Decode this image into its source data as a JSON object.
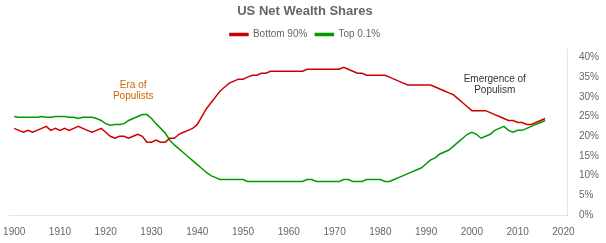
{
  "chart_data": {
    "type": "line",
    "title": "US Net Wealth Shares",
    "x": [
      1900,
      1901,
      1902,
      1903,
      1904,
      1905,
      1906,
      1907,
      1908,
      1909,
      1910,
      1911,
      1912,
      1913,
      1914,
      1915,
      1916,
      1917,
      1918,
      1919,
      1920,
      1921,
      1922,
      1923,
      1924,
      1925,
      1926,
      1927,
      1928,
      1929,
      1930,
      1931,
      1932,
      1933,
      1934,
      1935,
      1936,
      1937,
      1938,
      1939,
      1940,
      1941,
      1942,
      1943,
      1944,
      1945,
      1946,
      1947,
      1948,
      1949,
      1950,
      1951,
      1952,
      1953,
      1954,
      1955,
      1956,
      1957,
      1958,
      1959,
      1960,
      1961,
      1962,
      1963,
      1964,
      1965,
      1966,
      1967,
      1968,
      1969,
      1970,
      1971,
      1972,
      1973,
      1974,
      1975,
      1976,
      1977,
      1978,
      1979,
      1980,
      1981,
      1982,
      1983,
      1984,
      1985,
      1986,
      1987,
      1988,
      1989,
      1990,
      1991,
      1992,
      1993,
      1994,
      1995,
      1996,
      1997,
      1998,
      1999,
      2000,
      2001,
      2002,
      2003,
      2004,
      2005,
      2006,
      2007,
      2008,
      2009,
      2010,
      2011,
      2012,
      2013,
      2014,
      2015,
      2016
    ],
    "series": [
      {
        "name": "Bottom 90%",
        "color": "#cc0000",
        "values": [
          0.22,
          0.215,
          0.21,
          0.215,
          0.21,
          0.215,
          0.22,
          0.225,
          0.215,
          0.22,
          0.215,
          0.22,
          0.215,
          0.22,
          0.225,
          0.22,
          0.215,
          0.21,
          0.215,
          0.22,
          0.21,
          0.2,
          0.195,
          0.2,
          0.2,
          0.195,
          0.2,
          0.205,
          0.2,
          0.185,
          0.185,
          0.19,
          0.185,
          0.185,
          0.195,
          0.195,
          0.205,
          0.21,
          0.215,
          0.22,
          0.23,
          0.25,
          0.27,
          0.285,
          0.3,
          0.315,
          0.325,
          0.335,
          0.34,
          0.345,
          0.345,
          0.35,
          0.355,
          0.355,
          0.36,
          0.36,
          0.365,
          0.365,
          0.365,
          0.365,
          0.365,
          0.365,
          0.365,
          0.365,
          0.37,
          0.37,
          0.37,
          0.37,
          0.37,
          0.37,
          0.37,
          0.37,
          0.375,
          0.37,
          0.365,
          0.36,
          0.36,
          0.355,
          0.355,
          0.355,
          0.355,
          0.355,
          0.35,
          0.345,
          0.34,
          0.335,
          0.33,
          0.33,
          0.33,
          0.33,
          0.33,
          0.33,
          0.325,
          0.32,
          0.315,
          0.31,
          0.305,
          0.295,
          0.285,
          0.275,
          0.265,
          0.265,
          0.265,
          0.265,
          0.26,
          0.255,
          0.25,
          0.245,
          0.24,
          0.24,
          0.235,
          0.235,
          0.23,
          0.23,
          0.235,
          0.24,
          0.245
        ]
      },
      {
        "name": "Top 0.1%",
        "color": "#009900",
        "values": [
          0.25,
          0.248,
          0.248,
          0.248,
          0.248,
          0.248,
          0.25,
          0.248,
          0.248,
          0.25,
          0.25,
          0.25,
          0.248,
          0.248,
          0.245,
          0.248,
          0.248,
          0.248,
          0.245,
          0.24,
          0.232,
          0.228,
          0.23,
          0.23,
          0.232,
          0.24,
          0.245,
          0.25,
          0.255,
          0.255,
          0.245,
          0.232,
          0.22,
          0.208,
          0.19,
          0.178,
          0.168,
          0.158,
          0.148,
          0.138,
          0.128,
          0.118,
          0.108,
          0.1,
          0.095,
          0.09,
          0.09,
          0.09,
          0.09,
          0.09,
          0.09,
          0.085,
          0.085,
          0.085,
          0.085,
          0.085,
          0.085,
          0.085,
          0.085,
          0.085,
          0.085,
          0.085,
          0.085,
          0.085,
          0.09,
          0.09,
          0.085,
          0.085,
          0.085,
          0.085,
          0.085,
          0.085,
          0.09,
          0.09,
          0.085,
          0.085,
          0.085,
          0.09,
          0.09,
          0.09,
          0.09,
          0.085,
          0.085,
          0.09,
          0.095,
          0.1,
          0.105,
          0.11,
          0.115,
          0.12,
          0.13,
          0.14,
          0.145,
          0.155,
          0.16,
          0.165,
          0.175,
          0.185,
          0.195,
          0.205,
          0.21,
          0.205,
          0.195,
          0.2,
          0.205,
          0.215,
          0.22,
          0.225,
          0.215,
          0.21,
          0.215,
          0.215,
          0.22,
          0.225,
          0.23,
          0.235,
          0.24
        ]
      }
    ],
    "xlim": [
      1899,
      2021
    ],
    "xticks": [
      1900,
      1910,
      1920,
      1930,
      1940,
      1950,
      1960,
      1970,
      1980,
      1990,
      2000,
      2010,
      2020
    ],
    "ylim": [
      0,
      0.42
    ],
    "yticks": [
      {
        "value": 0,
        "label": "0%"
      },
      {
        "value": 0.05,
        "label": "5%"
      },
      {
        "value": 0.1,
        "label": "10%"
      },
      {
        "value": 0.15,
        "label": "15%"
      },
      {
        "value": 0.2,
        "label": "20%"
      },
      {
        "value": 0.25,
        "label": "25%"
      },
      {
        "value": 0.3,
        "label": "30%"
      },
      {
        "value": 0.35,
        "label": "35%"
      },
      {
        "value": 0.4,
        "label": "40%"
      }
    ],
    "annotations": [
      {
        "text": "Era of\nPopulists",
        "x": 1926,
        "y": 0.29,
        "color": "#cc6600"
      },
      {
        "text": "Emergence of\nPopulism",
        "x": 2005,
        "y": 0.305,
        "color": "#333333"
      }
    ],
    "grid": false,
    "legend": "top"
  }
}
